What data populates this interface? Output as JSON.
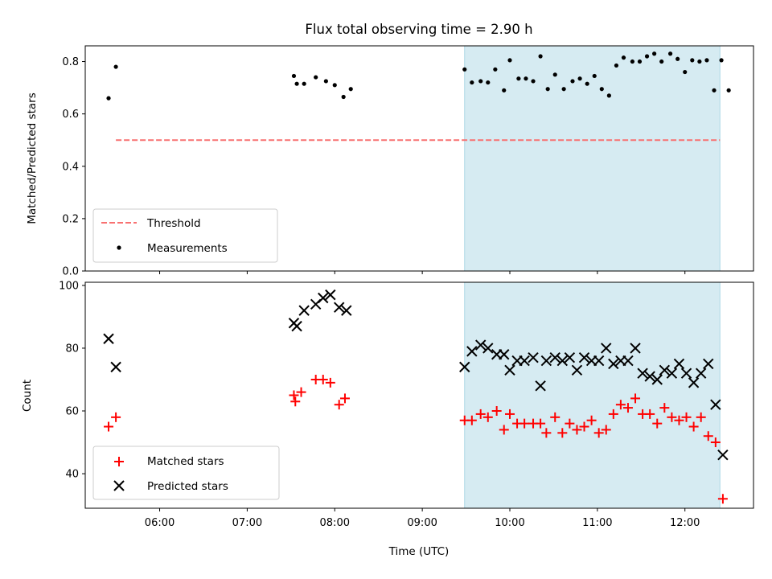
{
  "chart_data": {
    "type": "scatter",
    "title": "Flux total observing time = 2.90 h",
    "xlabel": "Time (UTC)",
    "x_range": [
      "05:09",
      "12:47"
    ],
    "x_ticks": [
      "06:00",
      "07:00",
      "08:00",
      "09:00",
      "10:00",
      "11:00",
      "12:00"
    ],
    "highlight_span": [
      "09:29",
      "12:24"
    ],
    "colors": {
      "threshold": "#f87171",
      "measurement": "#000000",
      "matched": "#ff0000",
      "predicted": "#000000",
      "span": "#add8e6"
    },
    "top_panel": {
      "ylabel": "Matched/Predicted stars",
      "ylim": [
        0,
        0.86
      ],
      "y_ticks": [
        "0.0",
        "0.2",
        "0.4",
        "0.6",
        "0.8"
      ],
      "legend_position": "lower-left",
      "threshold": {
        "name": "Threshold",
        "value": 0.5,
        "x_start": "05:30",
        "x_end": "12:24"
      },
      "series": [
        {
          "name": "Measurements",
          "points": [
            [
              "05:25",
              0.66
            ],
            [
              "05:30",
              0.78
            ],
            [
              "07:32",
              0.745
            ],
            [
              "07:34",
              0.715
            ],
            [
              "07:39",
              0.715
            ],
            [
              "07:47",
              0.74
            ],
            [
              "07:54",
              0.725
            ],
            [
              "08:00",
              0.71
            ],
            [
              "08:06",
              0.665
            ],
            [
              "08:11",
              0.695
            ],
            [
              "09:29",
              0.77
            ],
            [
              "09:34",
              0.72
            ],
            [
              "09:40",
              0.725
            ],
            [
              "09:45",
              0.72
            ],
            [
              "09:50",
              0.77
            ],
            [
              "09:56",
              0.69
            ],
            [
              "10:00",
              0.805
            ],
            [
              "10:06",
              0.735
            ],
            [
              "10:11",
              0.735
            ],
            [
              "10:16",
              0.725
            ],
            [
              "10:21",
              0.82
            ],
            [
              "10:26",
              0.695
            ],
            [
              "10:31",
              0.75
            ],
            [
              "10:37",
              0.695
            ],
            [
              "10:43",
              0.725
            ],
            [
              "10:48",
              0.735
            ],
            [
              "10:53",
              0.715
            ],
            [
              "10:58",
              0.745
            ],
            [
              "11:03",
              0.695
            ],
            [
              "11:08",
              0.67
            ],
            [
              "11:13",
              0.785
            ],
            [
              "11:18",
              0.815
            ],
            [
              "11:24",
              0.8
            ],
            [
              "11:29",
              0.8
            ],
            [
              "11:34",
              0.82
            ],
            [
              "11:39",
              0.83
            ],
            [
              "11:44",
              0.8
            ],
            [
              "11:50",
              0.83
            ],
            [
              "11:55",
              0.81
            ],
            [
              "12:00",
              0.76
            ],
            [
              "12:05",
              0.805
            ],
            [
              "12:10",
              0.8
            ],
            [
              "12:15",
              0.805
            ],
            [
              "12:20",
              0.69
            ],
            [
              "12:25",
              0.805
            ],
            [
              "12:30",
              0.69
            ]
          ]
        }
      ]
    },
    "bottom_panel": {
      "ylabel": "Count",
      "ylim": [
        29,
        101
      ],
      "y_ticks": [
        "40",
        "60",
        "80",
        "100"
      ],
      "legend_position": "lower-left",
      "series": [
        {
          "name": "Matched stars",
          "points": [
            [
              "05:25",
              55
            ],
            [
              "05:30",
              58
            ],
            [
              "07:32",
              65
            ],
            [
              "07:33",
              63
            ],
            [
              "07:37",
              66
            ],
            [
              "07:47",
              70
            ],
            [
              "07:52",
              70
            ],
            [
              "07:57",
              69
            ],
            [
              "08:03",
              62
            ],
            [
              "08:07",
              64
            ],
            [
              "09:29",
              57
            ],
            [
              "09:34",
              57
            ],
            [
              "09:40",
              59
            ],
            [
              "09:45",
              58
            ],
            [
              "09:51",
              60
            ],
            [
              "09:56",
              54
            ],
            [
              "10:00",
              59
            ],
            [
              "10:05",
              56
            ],
            [
              "10:10",
              56
            ],
            [
              "10:16",
              56
            ],
            [
              "10:21",
              56
            ],
            [
              "10:25",
              53
            ],
            [
              "10:31",
              58
            ],
            [
              "10:36",
              53
            ],
            [
              "10:41",
              56
            ],
            [
              "10:46",
              54
            ],
            [
              "10:51",
              55
            ],
            [
              "10:56",
              57
            ],
            [
              "11:01",
              53
            ],
            [
              "11:06",
              54
            ],
            [
              "11:11",
              59
            ],
            [
              "11:16",
              62
            ],
            [
              "11:21",
              61
            ],
            [
              "11:26",
              64
            ],
            [
              "11:31",
              59
            ],
            [
              "11:36",
              59
            ],
            [
              "11:41",
              56
            ],
            [
              "11:46",
              61
            ],
            [
              "11:51",
              58
            ],
            [
              "11:56",
              57
            ],
            [
              "12:01",
              58
            ],
            [
              "12:06",
              55
            ],
            [
              "12:11",
              58
            ],
            [
              "12:16",
              52
            ],
            [
              "12:21",
              50
            ],
            [
              "12:26",
              32
            ]
          ]
        },
        {
          "name": "Predicted stars",
          "points": [
            [
              "05:25",
              83
            ],
            [
              "05:30",
              74
            ],
            [
              "07:32",
              88
            ],
            [
              "07:34",
              87
            ],
            [
              "07:39",
              92
            ],
            [
              "07:47",
              94
            ],
            [
              "07:52",
              96
            ],
            [
              "07:57",
              97
            ],
            [
              "08:03",
              93
            ],
            [
              "08:08",
              92
            ],
            [
              "09:29",
              74
            ],
            [
              "09:34",
              79
            ],
            [
              "09:40",
              81
            ],
            [
              "09:45",
              80
            ],
            [
              "09:51",
              78
            ],
            [
              "09:56",
              78
            ],
            [
              "10:00",
              73
            ],
            [
              "10:05",
              76
            ],
            [
              "10:10",
              76
            ],
            [
              "10:16",
              77
            ],
            [
              "10:21",
              68
            ],
            [
              "10:25",
              76
            ],
            [
              "10:31",
              77
            ],
            [
              "10:36",
              76
            ],
            [
              "10:41",
              77
            ],
            [
              "10:46",
              73
            ],
            [
              "10:51",
              77
            ],
            [
              "10:56",
              76
            ],
            [
              "11:01",
              76
            ],
            [
              "11:06",
              80
            ],
            [
              "11:11",
              75
            ],
            [
              "11:16",
              76
            ],
            [
              "11:21",
              76
            ],
            [
              "11:26",
              80
            ],
            [
              "11:31",
              72
            ],
            [
              "11:36",
              71
            ],
            [
              "11:41",
              70
            ],
            [
              "11:46",
              73
            ],
            [
              "11:51",
              72
            ],
            [
              "11:56",
              75
            ],
            [
              "12:01",
              72
            ],
            [
              "12:06",
              69
            ],
            [
              "12:11",
              72
            ],
            [
              "12:16",
              75
            ],
            [
              "12:21",
              62
            ],
            [
              "12:26",
              46
            ]
          ]
        }
      ]
    }
  }
}
